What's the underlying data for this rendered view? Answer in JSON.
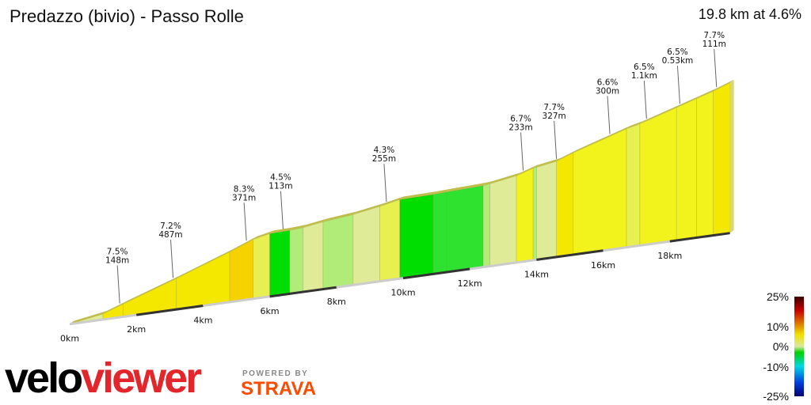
{
  "header": {
    "title": "Predazzo (bivio) - Passo Rolle",
    "summary": "19.8 km at 4.6%"
  },
  "chart_data": {
    "type": "area",
    "title": "Predazzo (bivio) - Passo Rolle",
    "total_distance_km": 19.8,
    "average_gradient_pct": 4.6,
    "x_unit": "km",
    "x_ticks": [
      "0km",
      "2km",
      "4km",
      "6km",
      "8km",
      "10km",
      "12km",
      "14km",
      "16km",
      "18km"
    ],
    "segments": [
      {
        "from": 0,
        "to": 1.0,
        "grad": 3.5
      },
      {
        "from": 1.0,
        "to": 1.6,
        "grad": 7.5
      },
      {
        "from": 1.6,
        "to": 3.2,
        "grad": 7.2
      },
      {
        "from": 3.2,
        "to": 4.8,
        "grad": 7.6
      },
      {
        "from": 4.8,
        "to": 5.5,
        "grad": 8.3
      },
      {
        "from": 5.5,
        "to": 6.0,
        "grad": 4.5
      },
      {
        "from": 6.0,
        "to": 6.6,
        "grad": 0.5
      },
      {
        "from": 6.6,
        "to": 7.0,
        "grad": 1.5
      },
      {
        "from": 7.0,
        "to": 7.6,
        "grad": 3.2
      },
      {
        "from": 7.6,
        "to": 8.5,
        "grad": 2.2
      },
      {
        "from": 8.5,
        "to": 9.3,
        "grad": 3.5
      },
      {
        "from": 9.3,
        "to": 9.9,
        "grad": 4.3
      },
      {
        "from": 9.9,
        "to": 10.9,
        "grad": 0.3
      },
      {
        "from": 10.9,
        "to": 11.3,
        "grad": 1.0
      },
      {
        "from": 11.3,
        "to": 12.4,
        "grad": 0.8
      },
      {
        "from": 12.4,
        "to": 12.6,
        "grad": 2.5
      },
      {
        "from": 12.6,
        "to": 13.4,
        "grad": 3.5
      },
      {
        "from": 13.4,
        "to": 13.9,
        "grad": 6.7
      },
      {
        "from": 13.9,
        "to": 14.0,
        "grad": 2.5
      },
      {
        "from": 14.0,
        "to": 14.6,
        "grad": 3.5
      },
      {
        "from": 14.6,
        "to": 15.1,
        "grad": 7.7
      },
      {
        "from": 15.1,
        "to": 16.7,
        "grad": 6.6
      },
      {
        "from": 16.7,
        "to": 17.1,
        "grad": 4.8
      },
      {
        "from": 17.1,
        "to": 18.2,
        "grad": 6.5
      },
      {
        "from": 18.2,
        "to": 18.8,
        "grad": 6.5
      },
      {
        "from": 18.8,
        "to": 19.3,
        "grad": 6.5
      },
      {
        "from": 19.3,
        "to": 19.8,
        "grad": 7.7
      }
    ],
    "annotations": [
      {
        "km": 1.5,
        "grad": "7.5%",
        "len": "148m"
      },
      {
        "km": 3.1,
        "grad": "7.2%",
        "len": "487m"
      },
      {
        "km": 5.3,
        "grad": "8.3%",
        "len": "371m"
      },
      {
        "km": 6.4,
        "grad": "4.5%",
        "len": "113m"
      },
      {
        "km": 9.5,
        "grad": "4.3%",
        "len": "255m"
      },
      {
        "km": 13.6,
        "grad": "6.7%",
        "len": "233m"
      },
      {
        "km": 14.6,
        "grad": "7.7%",
        "len": "327m"
      },
      {
        "km": 16.2,
        "grad": "6.6%",
        "len": "300m"
      },
      {
        "km": 17.3,
        "grad": "6.5%",
        "len": "1.1km"
      },
      {
        "km": 18.3,
        "grad": "6.5%",
        "len": "0.53km"
      },
      {
        "km": 19.4,
        "grad": "7.7%",
        "len": "111m"
      }
    ],
    "legend": {
      "labels": [
        "25%",
        "10%",
        "0%",
        "-10%",
        "-25%"
      ],
      "colorscale": [
        "#3a0000",
        "#c80000",
        "#f0e000",
        "#d8e8a0",
        "#00d000",
        "#00d8e0",
        "#0040e0",
        "#000070"
      ]
    }
  },
  "branding": {
    "logo_a": "velo",
    "logo_b": "viewer",
    "powered_by": "POWERED BY",
    "strava": "STRAVA"
  }
}
